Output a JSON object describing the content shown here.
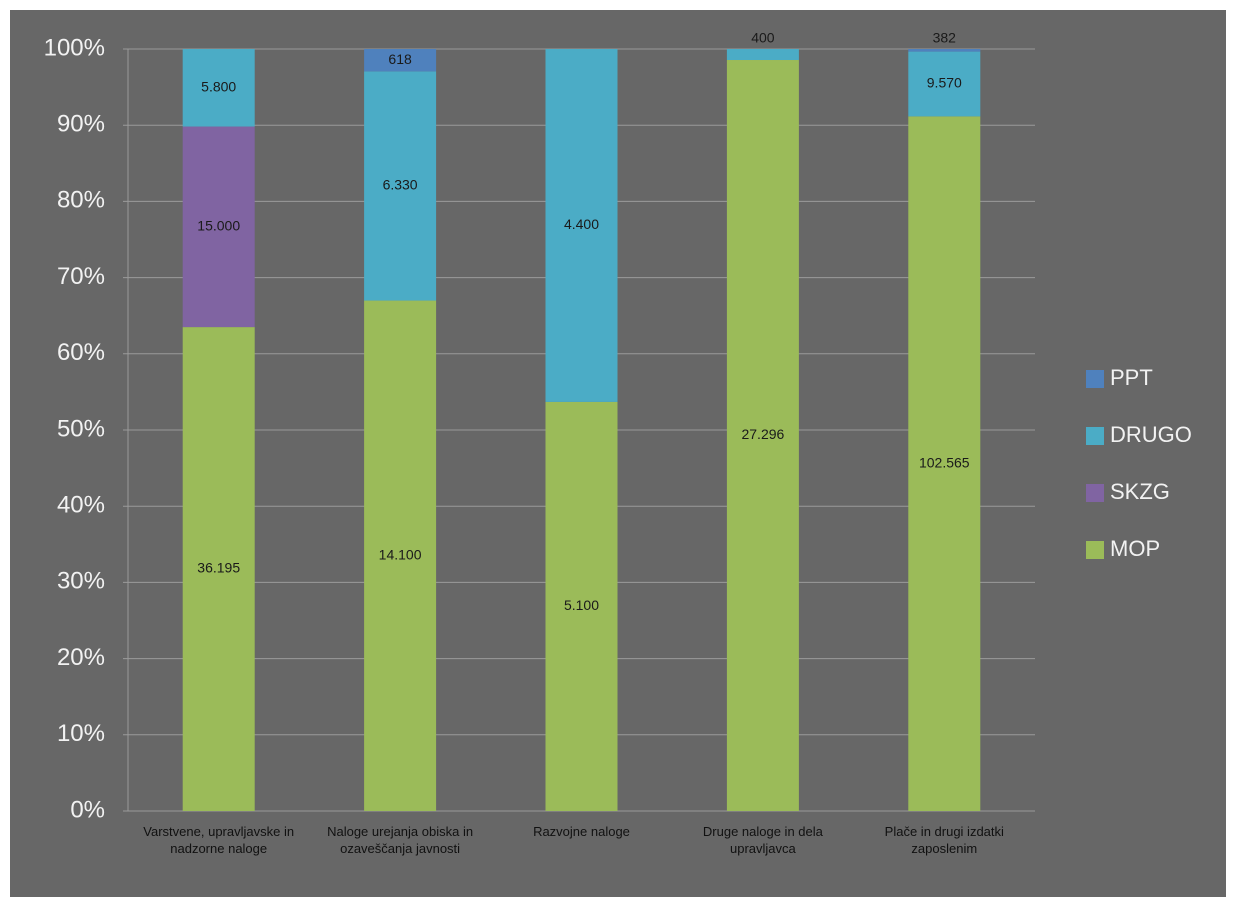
{
  "chart_data": {
    "type": "bar",
    "stack": "percent",
    "categories": [
      "Varstvene, upravljavske in nadzorne naloge",
      "Naloge urejanja obiska in ozaveščanja javnosti",
      "Razvojne naloge",
      "Druge naloge in dela upravljavca",
      "Plače in drugi izdatki zaposlenim"
    ],
    "series": [
      {
        "name": "MOP",
        "color": "#9bbb59",
        "values": [
          36195,
          14100,
          5100,
          27296,
          102565
        ],
        "value_labels": [
          "36.195",
          "14.100",
          "5.100",
          "27.296",
          "102.565"
        ]
      },
      {
        "name": "SKZG",
        "color": "#8064a2",
        "values": [
          15000,
          null,
          null,
          null,
          null
        ],
        "value_labels": [
          "15.000",
          null,
          null,
          null,
          null
        ]
      },
      {
        "name": "DRUGO",
        "color": "#4bacc6",
        "values": [
          5800,
          6330,
          4400,
          400,
          9570
        ],
        "value_labels": [
          "5.800",
          "6.330",
          "4.400",
          "400",
          "9.570"
        ]
      },
      {
        "name": "PPT",
        "color": "#4f81bd",
        "values": [
          null,
          618,
          null,
          null,
          382
        ],
        "value_labels": [
          null,
          "618",
          null,
          null,
          "382"
        ]
      }
    ],
    "ylim": [
      0,
      100
    ],
    "yticks": [
      {
        "value": 0,
        "label": "0%"
      },
      {
        "value": 10,
        "label": "10%"
      },
      {
        "value": 20,
        "label": "20%"
      },
      {
        "value": 30,
        "label": "30%"
      },
      {
        "value": 40,
        "label": "40%"
      },
      {
        "value": 50,
        "label": "50%"
      },
      {
        "value": 60,
        "label": "60%"
      },
      {
        "value": 70,
        "label": "70%"
      },
      {
        "value": 80,
        "label": "80%"
      },
      {
        "value": 90,
        "label": "90%"
      },
      {
        "value": 100,
        "label": "100%"
      }
    ],
    "grid": true,
    "legend": "right"
  }
}
